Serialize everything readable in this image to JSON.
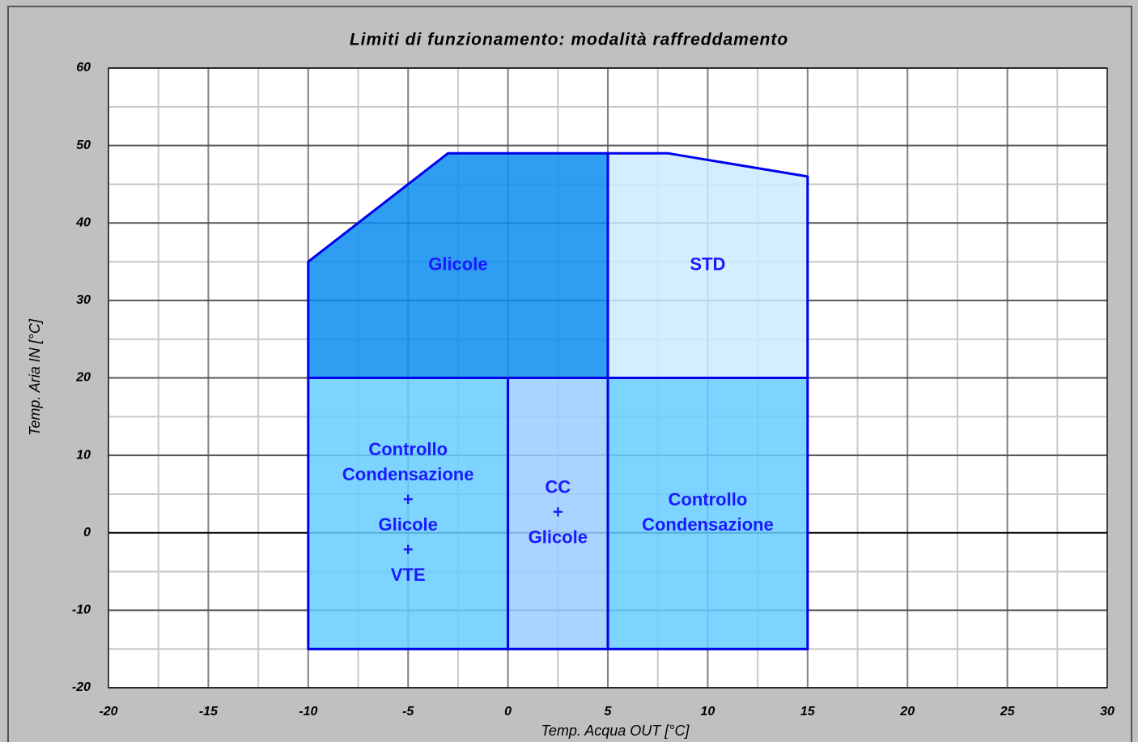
{
  "chart_data": {
    "type": "region",
    "title": "Limiti di funzionamento: modalità raffreddamento",
    "x_label": "Temp. Acqua OUT [°C]",
    "y_label": "Temp. Aria IN [°C]",
    "xlim": [
      -20,
      30
    ],
    "ylim": [
      -20,
      60
    ],
    "xticks": [
      -20,
      -15,
      -10,
      -5,
      0,
      5,
      10,
      15,
      20,
      25,
      30
    ],
    "yticks": [
      -20,
      -10,
      0,
      10,
      20,
      30,
      40,
      50,
      60
    ],
    "xminorticks": [
      -17.5,
      -12.5,
      -7.5,
      -2.5,
      2.5,
      7.5,
      12.5,
      17.5,
      22.5,
      27.5
    ],
    "yminorticks": [
      -15,
      -5,
      5,
      15,
      25,
      35,
      45,
      55
    ],
    "grid": true,
    "series": [
      {
        "label": [
          "Glicole"
        ],
        "color": "#0a8cf0",
        "x": [
          -10,
          -10,
          -5,
          -3,
          5,
          5
        ],
        "y": [
          20,
          35,
          45,
          49,
          49,
          20
        ]
      },
      {
        "label": [
          "STD"
        ],
        "color": "#cdeaff",
        "x": [
          5,
          5,
          8,
          15,
          15
        ],
        "y": [
          20,
          49,
          49,
          46,
          20
        ]
      },
      {
        "label": [
          "Controllo",
          "Condensazione",
          "+",
          "Glicole",
          "+",
          "VTE"
        ],
        "color": "#66ccff",
        "x": [
          -10,
          -10,
          0,
          0
        ],
        "y": [
          -15,
          20,
          20,
          -15
        ]
      },
      {
        "label": [
          "CC",
          "+",
          "Glicole"
        ],
        "color": "#99ccff",
        "x": [
          0,
          0,
          5,
          5
        ],
        "y": [
          -15,
          20,
          20,
          -15
        ]
      },
      {
        "label": [
          "Controllo",
          "Condensazione"
        ],
        "color": "#66ccff",
        "x": [
          5,
          5,
          15,
          15
        ],
        "y": [
          -15,
          20,
          20,
          -15
        ]
      }
    ]
  }
}
